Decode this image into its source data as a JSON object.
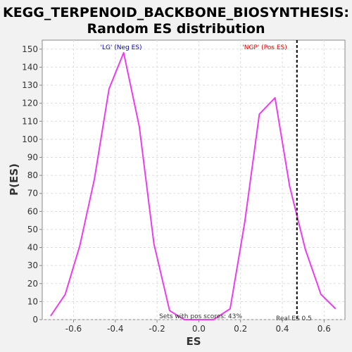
{
  "chart_data": {
    "type": "line",
    "title": "KEGG_TERPENOID_BACKBONE_BIOSYNTHESIS:",
    "subtitle": "Random ES distribution",
    "xlabel": "ES",
    "ylabel": "P(ES)",
    "xlim": [
      -0.75,
      0.7
    ],
    "ylim": [
      0,
      155
    ],
    "xticks": [
      -0.6,
      -0.4,
      -0.2,
      0.0,
      0.2,
      0.4,
      0.6
    ],
    "xtick_labels": [
      "-0.6",
      "-0.4",
      "-0.2",
      "0.0",
      "0.2",
      "0.4",
      "0.6"
    ],
    "yticks": [
      0,
      10,
      20,
      30,
      40,
      50,
      60,
      70,
      80,
      90,
      100,
      110,
      120,
      130,
      140,
      150
    ],
    "ytick_labels": [
      "0",
      "10",
      "20",
      "30",
      "40",
      "50",
      "60",
      "70",
      "80",
      "90",
      "100",
      "110",
      "120",
      "130",
      "140",
      "150"
    ],
    "grid": true,
    "line_color": "#ee3bee",
    "series": [
      {
        "x": [
          -0.71,
          -0.64,
          -0.57,
          -0.5,
          -0.43,
          -0.36,
          -0.285,
          -0.215,
          -0.14,
          -0.07,
          0.0,
          0.07,
          0.15,
          0.22,
          0.29,
          0.365,
          0.435,
          0.51,
          0.585,
          0.655
        ],
        "y": [
          2,
          14,
          41,
          78,
          128,
          148,
          107,
          42,
          5,
          0,
          0,
          0,
          6,
          54,
          114,
          123,
          74,
          39,
          14,
          6
        ]
      }
    ],
    "real_es": 0.47,
    "real_es_line_color": "#000000",
    "annotations": {
      "neg_label": "'LG' (Neg ES)",
      "neg_color": "#0000cc",
      "pos_label": "'NGP' (Pos ES)",
      "pos_color": "#dd0000",
      "pos_scores": "Sets with pos scores: 43%",
      "real_es_label": "Real ES 0.5"
    }
  },
  "colors": {
    "background": "#f2f2f2",
    "plot_background": "#ffffff",
    "gridline": "#dddddd"
  }
}
